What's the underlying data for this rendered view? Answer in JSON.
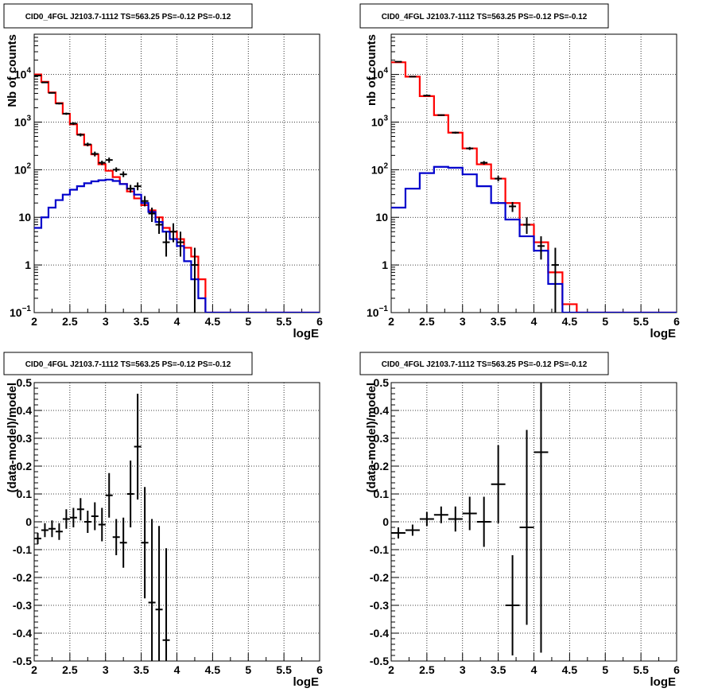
{
  "chart_data": [
    {
      "type": "step",
      "title": "CID0_4FGL J2103.7-1112 TS=563.25 PS=-0.12 PS=-0.12",
      "xlabel": "logE",
      "ylabel": "Nb of counts",
      "xlim": [
        2,
        6
      ],
      "ylim": [
        0.1,
        70000
      ],
      "yscale": "log",
      "grid": true,
      "xticks": [
        "2",
        "2.5",
        "3",
        "3.5",
        "4",
        "4.5",
        "5",
        "5.5",
        "6"
      ],
      "yticks": [
        {
          "v": 0.1,
          "base": "10",
          "exp": "−1"
        },
        {
          "v": 1,
          "label": "1"
        },
        {
          "v": 10,
          "label": "10"
        },
        {
          "v": 100,
          "base": "10",
          "exp": "2"
        },
        {
          "v": 1000,
          "base": "10",
          "exp": "3"
        },
        {
          "v": 10000,
          "base": "10",
          "exp": "4"
        }
      ],
      "bin_edges": [
        2.0,
        2.1,
        2.2,
        2.3,
        2.4,
        2.5,
        2.6,
        2.7,
        2.8,
        2.9,
        3.0,
        3.1,
        3.2,
        3.3,
        3.4,
        3.5,
        3.6,
        3.7,
        3.8,
        3.9,
        4.0,
        4.1,
        4.2,
        4.3,
        4.4,
        4.5,
        4.6,
        4.7,
        4.8,
        4.9,
        5.0,
        5.1,
        5.2,
        5.3,
        5.4,
        5.5,
        5.6,
        5.7,
        5.8,
        5.9,
        6.0
      ],
      "series": [
        {
          "color": "#ff0000",
          "values": [
            10000,
            7000,
            4200,
            2500,
            1500,
            900,
            550,
            330,
            210,
            130,
            95,
            70,
            50,
            35,
            25,
            18,
            14,
            10,
            6,
            5,
            3.5,
            2.3,
            1.5,
            0.5,
            0.1,
            0.1,
            0.1,
            0.1,
            0.1,
            0.1,
            0.1,
            0.1,
            0.1,
            0.1,
            0.1,
            0.1,
            0.1,
            0.1,
            0.1,
            0.1
          ]
        },
        {
          "color": "#0000cc",
          "values": [
            6,
            10,
            16,
            23,
            30,
            38,
            45,
            52,
            57,
            60,
            62,
            58,
            50,
            40,
            30,
            20,
            13,
            8,
            5,
            3.5,
            2.5,
            1.2,
            0.5,
            0.2,
            0.1,
            0.1,
            0.1,
            0.1,
            0.1,
            0.1,
            0.1,
            0.1,
            0.1,
            0.1,
            0.1,
            0.1,
            0.1,
            0.1,
            0.1,
            0.1
          ]
        }
      ],
      "points": [
        {
          "x": 2.05,
          "y": 9500,
          "lo": 9300,
          "hi": 9700
        },
        {
          "x": 2.15,
          "y": 6800,
          "lo": 6650,
          "hi": 6950
        },
        {
          "x": 2.25,
          "y": 4100,
          "lo": 3980,
          "hi": 4220
        },
        {
          "x": 2.35,
          "y": 2450,
          "lo": 2350,
          "hi": 2550
        },
        {
          "x": 2.45,
          "y": 1500,
          "lo": 1420,
          "hi": 1580
        },
        {
          "x": 2.55,
          "y": 930,
          "lo": 870,
          "hi": 990
        },
        {
          "x": 2.65,
          "y": 540,
          "lo": 500,
          "hi": 580
        },
        {
          "x": 2.75,
          "y": 340,
          "lo": 310,
          "hi": 370
        },
        {
          "x": 2.85,
          "y": 215,
          "lo": 190,
          "hi": 240
        },
        {
          "x": 2.95,
          "y": 140,
          "lo": 125,
          "hi": 155
        },
        {
          "x": 3.05,
          "y": 160,
          "lo": 140,
          "hi": 180
        },
        {
          "x": 3.15,
          "y": 100,
          "lo": 90,
          "hi": 112
        },
        {
          "x": 3.25,
          "y": 80,
          "lo": 70,
          "hi": 92
        },
        {
          "x": 3.35,
          "y": 40,
          "lo": 33,
          "hi": 48
        },
        {
          "x": 3.45,
          "y": 45,
          "lo": 37,
          "hi": 54
        },
        {
          "x": 3.55,
          "y": 22,
          "lo": 17,
          "hi": 28
        },
        {
          "x": 3.65,
          "y": 12,
          "lo": 8,
          "hi": 16
        },
        {
          "x": 3.75,
          "y": 7,
          "lo": 4.5,
          "hi": 10
        },
        {
          "x": 3.85,
          "y": 3,
          "lo": 1.5,
          "hi": 5
        },
        {
          "x": 3.95,
          "y": 5,
          "lo": 3,
          "hi": 7.5
        },
        {
          "x": 4.05,
          "y": 3,
          "lo": 1.5,
          "hi": 5
        },
        {
          "x": 4.25,
          "y": 1,
          "lo": 0.1,
          "hi": 2.3
        }
      ]
    },
    {
      "type": "step",
      "title": "CID0_4FGL J2103.7-1112 TS=563.25 PS=-0.12 PS=-0.12",
      "xlabel": "logE",
      "ylabel": "nb of counts",
      "xlim": [
        2,
        6
      ],
      "ylim": [
        0.1,
        70000
      ],
      "yscale": "log",
      "grid": true,
      "xticks": [
        "2",
        "2.5",
        "3",
        "3.5",
        "4",
        "4.5",
        "5",
        "5.5",
        "6"
      ],
      "yticks": [
        {
          "v": 0.1,
          "base": "10",
          "exp": "−1"
        },
        {
          "v": 1,
          "label": "1"
        },
        {
          "v": 10,
          "label": "10"
        },
        {
          "v": 100,
          "base": "10",
          "exp": "2"
        },
        {
          "v": 1000,
          "base": "10",
          "exp": "3"
        },
        {
          "v": 10000,
          "base": "10",
          "exp": "4"
        }
      ],
      "bin_edges": [
        2.0,
        2.2,
        2.4,
        2.6,
        2.8,
        3.0,
        3.2,
        3.4,
        3.6,
        3.8,
        4.0,
        4.2,
        4.4,
        4.6,
        4.8,
        5.0,
        5.2,
        5.4,
        5.6,
        5.8,
        6.0
      ],
      "series": [
        {
          "color": "#ff0000",
          "values": [
            18000,
            9000,
            3500,
            1400,
            600,
            280,
            130,
            65,
            20,
            7,
            3,
            0.7,
            0.15,
            0.1,
            0.1,
            0.1,
            0.1,
            0.1,
            0.1,
            0.1
          ]
        },
        {
          "color": "#0000cc",
          "values": [
            16,
            40,
            85,
            115,
            110,
            80,
            45,
            20,
            9,
            4,
            2,
            0.4,
            0.1,
            0.1,
            0.1,
            0.1,
            0.1,
            0.1,
            0.1,
            0.1
          ]
        }
      ],
      "points": [
        {
          "x": 2.1,
          "y": 18500,
          "lo": 18300,
          "hi": 18700
        },
        {
          "x": 2.3,
          "y": 9000,
          "lo": 8850,
          "hi": 9150
        },
        {
          "x": 2.5,
          "y": 3600,
          "lo": 3500,
          "hi": 3700
        },
        {
          "x": 2.7,
          "y": 1400,
          "lo": 1350,
          "hi": 1450
        },
        {
          "x": 2.9,
          "y": 600,
          "lo": 570,
          "hi": 630
        },
        {
          "x": 3.1,
          "y": 280,
          "lo": 260,
          "hi": 300
        },
        {
          "x": 3.3,
          "y": 140,
          "lo": 128,
          "hi": 152
        },
        {
          "x": 3.5,
          "y": 65,
          "lo": 57,
          "hi": 74
        },
        {
          "x": 3.7,
          "y": 17,
          "lo": 13,
          "hi": 21
        },
        {
          "x": 3.9,
          "y": 7,
          "lo": 4.5,
          "hi": 10
        },
        {
          "x": 4.1,
          "y": 2.5,
          "lo": 1.3,
          "hi": 4
        },
        {
          "x": 4.3,
          "y": 1,
          "lo": 0.1,
          "hi": 2.3
        }
      ]
    },
    {
      "type": "scatter",
      "title": "CID0_4FGL J2103.7-1112 TS=563.25 PS=-0.12 PS=-0.12",
      "xlabel": "logE",
      "ylabel": "(data-model)/model",
      "xlim": [
        2,
        6
      ],
      "ylim": [
        -0.5,
        0.5
      ],
      "grid": true,
      "xticks": [
        "2",
        "2.5",
        "3",
        "3.5",
        "4",
        "4.5",
        "5",
        "5.5",
        "6"
      ],
      "yticks": [
        "-0.5",
        "-0.4",
        "-0.3",
        "-0.2",
        "-0.1",
        "0",
        "0.1",
        "0.2",
        "0.3",
        "0.4",
        "0.5"
      ],
      "xerr": 0.05,
      "points": [
        {
          "x": 2.05,
          "y": -0.06,
          "err": 0.02
        },
        {
          "x": 2.15,
          "y": -0.03,
          "err": 0.025
        },
        {
          "x": 2.25,
          "y": -0.025,
          "err": 0.03
        },
        {
          "x": 2.35,
          "y": -0.035,
          "err": 0.03
        },
        {
          "x": 2.45,
          "y": 0.01,
          "err": 0.035
        },
        {
          "x": 2.55,
          "y": 0.015,
          "err": 0.035
        },
        {
          "x": 2.65,
          "y": 0.045,
          "err": 0.04
        },
        {
          "x": 2.75,
          "y": 0.0,
          "err": 0.04
        },
        {
          "x": 2.85,
          "y": 0.02,
          "err": 0.05
        },
        {
          "x": 2.95,
          "y": -0.01,
          "err": 0.06
        },
        {
          "x": 3.05,
          "y": 0.095,
          "err": 0.08
        },
        {
          "x": 3.15,
          "y": -0.055,
          "err": 0.065
        },
        {
          "x": 3.25,
          "y": -0.075,
          "err": 0.09
        },
        {
          "x": 3.35,
          "y": 0.1,
          "err": 0.12
        },
        {
          "x": 3.45,
          "y": 0.27,
          "err": 0.19
        },
        {
          "x": 3.55,
          "y": -0.075,
          "err": 0.2
        },
        {
          "x": 3.65,
          "y": -0.29,
          "err": 0.3
        },
        {
          "x": 3.75,
          "y": -0.315,
          "err": 0.3
        },
        {
          "x": 3.85,
          "y": -0.425,
          "err": 0.33
        }
      ]
    },
    {
      "type": "scatter",
      "title": "CID0_4FGL J2103.7-1112 TS=563.25 PS=-0.12 PS=-0.12",
      "xlabel": "logE",
      "ylabel": "(data-model)/model",
      "xlim": [
        2,
        6
      ],
      "ylim": [
        -0.5,
        0.5
      ],
      "grid": true,
      "xticks": [
        "2",
        "2.5",
        "3",
        "3.5",
        "4",
        "4.5",
        "5",
        "5.5",
        "6"
      ],
      "yticks": [
        "-0.5",
        "-0.4",
        "-0.3",
        "-0.2",
        "-0.1",
        "0",
        "0.1",
        "0.2",
        "0.3",
        "0.4",
        "0.5"
      ],
      "xerr": 0.1,
      "points": [
        {
          "x": 2.1,
          "y": -0.04,
          "err": 0.02
        },
        {
          "x": 2.3,
          "y": -0.03,
          "err": 0.02
        },
        {
          "x": 2.5,
          "y": 0.01,
          "err": 0.025
        },
        {
          "x": 2.7,
          "y": 0.025,
          "err": 0.03
        },
        {
          "x": 2.9,
          "y": 0.01,
          "err": 0.045
        },
        {
          "x": 3.1,
          "y": 0.03,
          "err": 0.06
        },
        {
          "x": 3.3,
          "y": 0.0,
          "err": 0.09
        },
        {
          "x": 3.5,
          "y": 0.135,
          "err": 0.14
        },
        {
          "x": 3.7,
          "y": -0.3,
          "err": 0.18
        },
        {
          "x": 3.9,
          "y": -0.02,
          "err": 0.35
        },
        {
          "x": 4.1,
          "y": 0.25,
          "err": 0.72
        }
      ]
    }
  ]
}
